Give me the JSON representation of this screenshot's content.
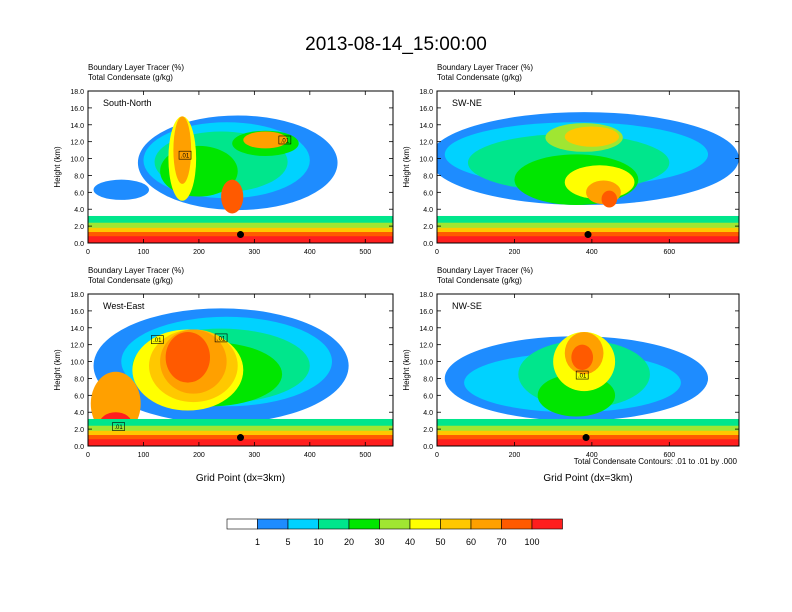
{
  "figure": {
    "title": "2013-08-14_15:00:00",
    "footnote": "Total Condensate Contours: .01 to .01 by .000"
  },
  "chart_data": [
    {
      "type": "heatmap",
      "panel": "South-North",
      "header_line1": "Boundary Layer Tracer    (%)",
      "header_line2": "Total Condensate    (g/kg)",
      "ylabel": "Height (km)",
      "xlabel": "",
      "xlim": [
        0,
        550
      ],
      "ylim": [
        0,
        18
      ],
      "xticks": [
        "0",
        "100",
        "200",
        "300",
        "400",
        "500"
      ],
      "yticks": [
        "0.0",
        "2.0",
        "4.0",
        "6.0",
        "8.0",
        "10.0",
        "12.0",
        "14.0",
        "16.0",
        "18.0"
      ],
      "contour_labels": [
        {
          "text": ".01",
          "x": 175,
          "y": 10.4
        },
        {
          "text": ".01",
          "x": 355,
          "y": 12.2
        }
      ],
      "marker": {
        "x": 275,
        "y": 1.0
      }
    },
    {
      "type": "heatmap",
      "panel": "SW-NE",
      "header_line1": "Boundary Layer Tracer    (%)",
      "header_line2": "Total Condensate    (g/kg)",
      "ylabel": "Height (km)",
      "xlabel": "",
      "xlim": [
        0,
        780
      ],
      "ylim": [
        0,
        18
      ],
      "xticks": [
        "0",
        "200",
        "400",
        "600"
      ],
      "yticks": [
        "0.0",
        "2.0",
        "4.0",
        "6.0",
        "8.0",
        "10.0",
        "12.0",
        "14.0",
        "16.0",
        "18.0"
      ],
      "contour_labels": [],
      "marker": {
        "x": 390,
        "y": 1.0
      }
    },
    {
      "type": "heatmap",
      "panel": "West-East",
      "header_line1": "Boundary Layer Tracer    (%)",
      "header_line2": "Total Condensate    (g/kg)",
      "ylabel": "Height (km)",
      "xlabel": "Grid Point (dx=3km)",
      "xlim": [
        0,
        550
      ],
      "ylim": [
        0,
        18
      ],
      "xticks": [
        "0",
        "100",
        "200",
        "300",
        "400",
        "500"
      ],
      "yticks": [
        "0.0",
        "2.0",
        "4.0",
        "6.0",
        "8.0",
        "10.0",
        "12.0",
        "14.0",
        "16.0",
        "18.0"
      ],
      "contour_labels": [
        {
          "text": ".01",
          "x": 125,
          "y": 12.6
        },
        {
          "text": ".01",
          "x": 240,
          "y": 12.8
        },
        {
          "text": ".01",
          "x": 55,
          "y": 2.3
        }
      ],
      "marker": {
        "x": 275,
        "y": 1.0
      }
    },
    {
      "type": "heatmap",
      "panel": "NW-SE",
      "header_line1": "Boundary Layer Tracer    (%)",
      "header_line2": "Total Condensate    (g/kg)",
      "ylabel": "Height (km)",
      "xlabel": "Grid Point (dx=3km)",
      "xlim": [
        0,
        780
      ],
      "ylim": [
        0,
        18
      ],
      "xticks": [
        "0",
        "200",
        "400",
        "600"
      ],
      "yticks": [
        "0.0",
        "2.0",
        "4.0",
        "6.0",
        "8.0",
        "10.0",
        "12.0",
        "14.0",
        "16.0",
        "18.0"
      ],
      "contour_labels": [
        {
          "text": ".01",
          "x": 375,
          "y": 8.4
        }
      ],
      "marker": {
        "x": 385,
        "y": 1.0
      }
    }
  ],
  "colorbar": {
    "labels": [
      "1",
      "5",
      "10",
      "20",
      "30",
      "40",
      "50",
      "60",
      "70",
      "100"
    ],
    "colors": [
      "#ffffff",
      "#1e8cff",
      "#00d2ff",
      "#00e68c",
      "#00e600",
      "#a0e632",
      "#ffff00",
      "#ffc800",
      "#ffa000",
      "#ff5a00",
      "#ff1e1e"
    ]
  }
}
